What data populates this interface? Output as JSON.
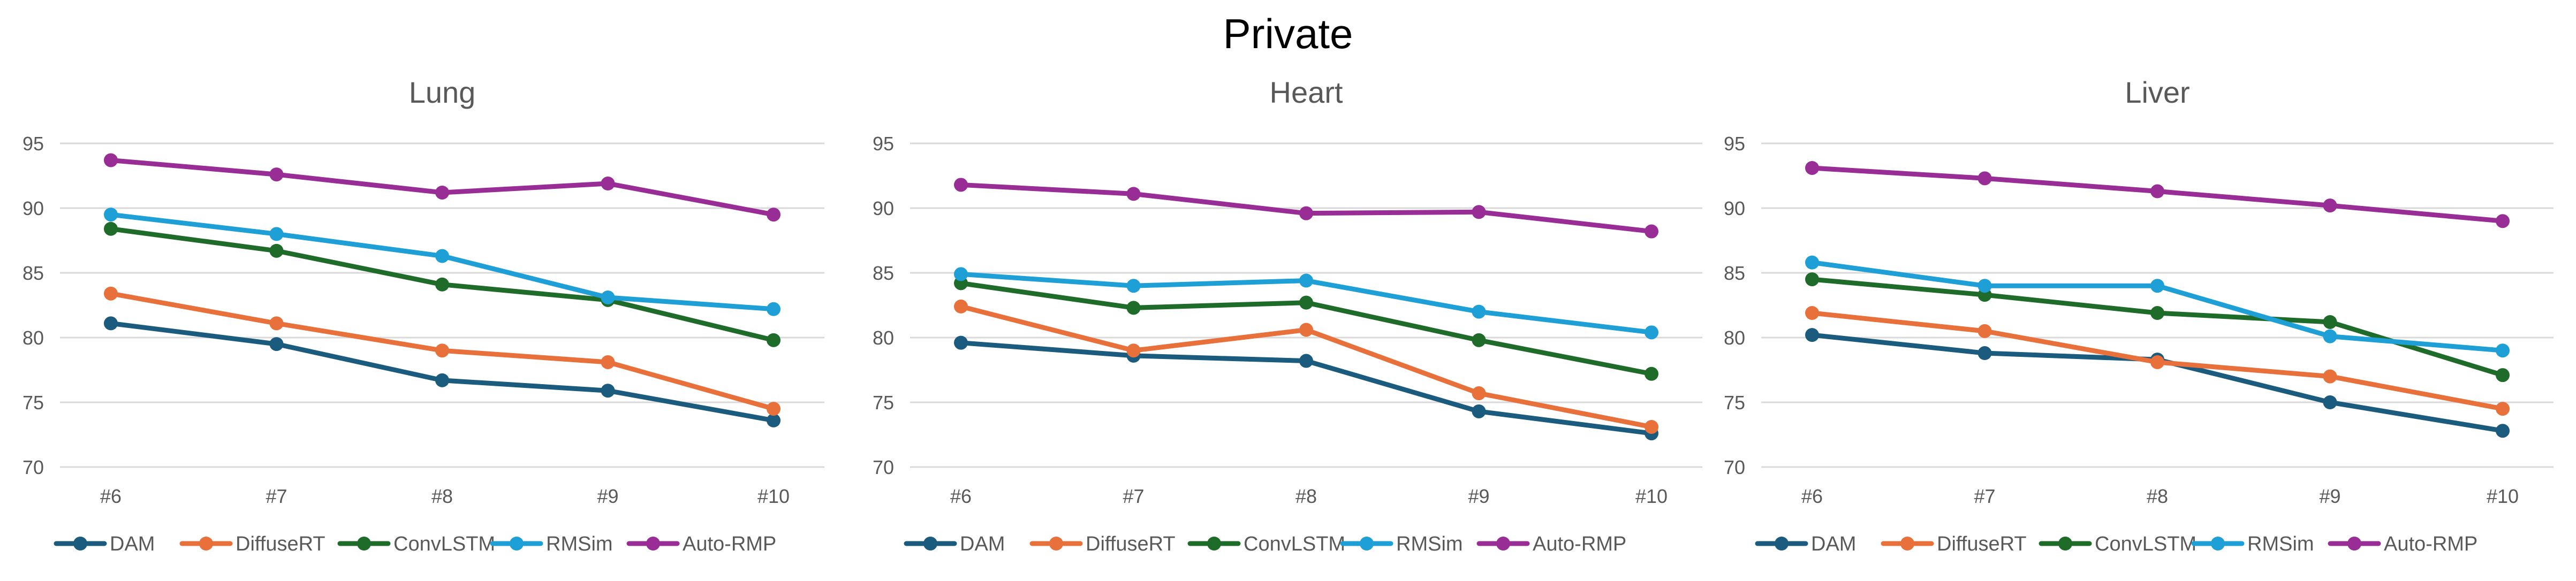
{
  "title": "Private",
  "colors": {
    "DAM": "#1a5b7e",
    "DiffuseRT": "#e8703a",
    "ConvLSTM": "#1f6b2a",
    "RMSim": "#1e9fd6",
    "Auto-RMP": "#982d96",
    "grid": "#d9d9d9",
    "text": "#595959"
  },
  "chart_data": [
    {
      "type": "line",
      "title": "Lung",
      "categories": [
        "#6",
        "#7",
        "#8",
        "#9",
        "#10"
      ],
      "ylim": [
        70,
        95
      ],
      "yticks": [
        70,
        75,
        80,
        85,
        90,
        95
      ],
      "grid": true,
      "legend": "bottom",
      "series": [
        {
          "name": "DAM",
          "values": [
            81.1,
            79.5,
            76.7,
            75.9,
            73.6
          ]
        },
        {
          "name": "DiffuseRT",
          "values": [
            83.4,
            81.1,
            79.0,
            78.1,
            74.5
          ]
        },
        {
          "name": "ConvLSTM",
          "values": [
            88.4,
            86.7,
            84.1,
            82.9,
            79.8
          ]
        },
        {
          "name": "RMSim",
          "values": [
            89.5,
            88.0,
            86.3,
            83.1,
            82.2
          ]
        },
        {
          "name": "Auto-RMP",
          "values": [
            93.7,
            92.6,
            91.2,
            91.9,
            89.5
          ]
        }
      ]
    },
    {
      "type": "line",
      "title": "Heart",
      "categories": [
        "#6",
        "#7",
        "#8",
        "#9",
        "#10"
      ],
      "ylim": [
        70,
        95
      ],
      "yticks": [
        70,
        75,
        80,
        85,
        90,
        95
      ],
      "grid": true,
      "legend": "bottom",
      "series": [
        {
          "name": "DAM",
          "values": [
            79.6,
            78.6,
            78.2,
            74.3,
            72.6
          ]
        },
        {
          "name": "DiffuseRT",
          "values": [
            82.4,
            79.0,
            80.6,
            75.7,
            73.1
          ]
        },
        {
          "name": "ConvLSTM",
          "values": [
            84.2,
            82.3,
            82.7,
            79.8,
            77.2
          ]
        },
        {
          "name": "RMSim",
          "values": [
            84.9,
            84.0,
            84.4,
            82.0,
            80.4
          ]
        },
        {
          "name": "Auto-RMP",
          "values": [
            91.8,
            91.1,
            89.6,
            89.7,
            88.2
          ]
        }
      ]
    },
    {
      "type": "line",
      "title": "Liver",
      "categories": [
        "#6",
        "#7",
        "#8",
        "#9",
        "#10"
      ],
      "ylim": [
        70,
        95
      ],
      "yticks": [
        70,
        75,
        80,
        85,
        90,
        95
      ],
      "grid": true,
      "legend": "bottom",
      "series": [
        {
          "name": "DAM",
          "values": [
            80.2,
            78.8,
            78.3,
            75.0,
            72.8
          ]
        },
        {
          "name": "DiffuseRT",
          "values": [
            81.9,
            80.5,
            78.1,
            77.0,
            74.5
          ]
        },
        {
          "name": "ConvLSTM",
          "values": [
            84.5,
            83.3,
            81.9,
            81.2,
            77.1
          ]
        },
        {
          "name": "RMSim",
          "values": [
            85.8,
            84.0,
            84.0,
            80.1,
            79.0
          ]
        },
        {
          "name": "Auto-RMP",
          "values": [
            93.1,
            92.3,
            91.3,
            90.2,
            89.0
          ]
        }
      ]
    }
  ]
}
